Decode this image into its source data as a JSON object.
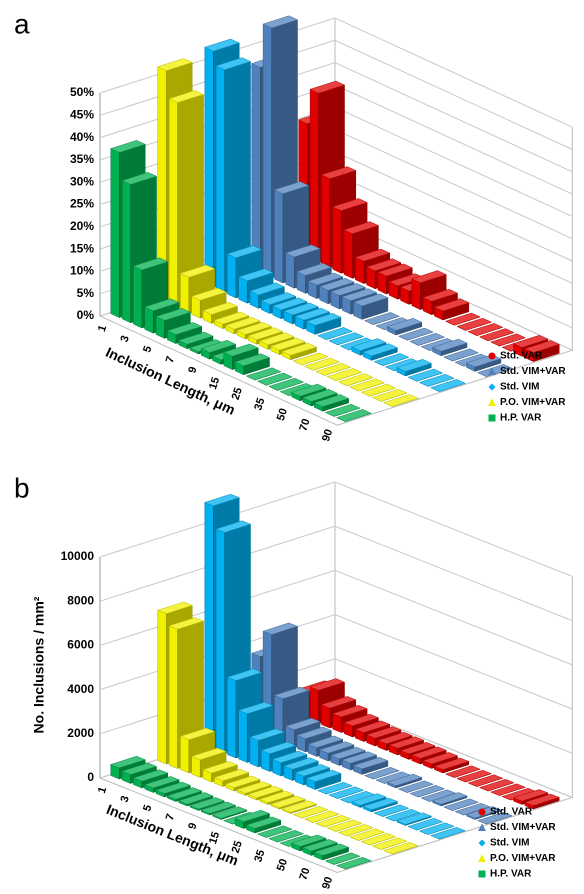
{
  "chart_data": [
    {
      "type": "bar3d",
      "label": "a",
      "categories": [
        "1",
        null,
        "3",
        null,
        "5",
        null,
        "7",
        null,
        "9",
        null,
        "15",
        null,
        "25",
        null,
        "35",
        null,
        "50",
        null,
        "70",
        null,
        "90"
      ],
      "xlabel": "Inclusion Length, μm",
      "ylim": [
        0,
        50
      ],
      "yticks": [
        {
          "value": 0,
          "label": "0%"
        },
        {
          "value": 5,
          "label": "5%"
        },
        {
          "value": 10,
          "label": "10%"
        },
        {
          "value": 15,
          "label": "15%"
        },
        {
          "value": 20,
          "label": "20%"
        },
        {
          "value": 25,
          "label": "25%"
        },
        {
          "value": 30,
          "label": "30%"
        },
        {
          "value": 35,
          "label": "35%"
        },
        {
          "value": 40,
          "label": "40%"
        },
        {
          "value": 45,
          "label": "45%"
        },
        {
          "value": 50,
          "label": "50%"
        }
      ],
      "grid": true,
      "series": [
        {
          "name": "Std. VAR",
          "color": "#e00000",
          "marker": "circle",
          "values": [
            30,
            38,
            20,
            14,
            10,
            5,
            4,
            4,
            3,
            3,
            6,
            3,
            2,
            0,
            0,
            0,
            0,
            0,
            0,
            2,
            2
          ]
        },
        {
          "name": "Std. VIM+VAR",
          "color": "#4f81bd",
          "marker": "triangle",
          "values": [
            46,
            56,
            20,
            7,
            4,
            3,
            3,
            3,
            3,
            3,
            0,
            0,
            1,
            0,
            0,
            0,
            1,
            0,
            0,
            1,
            0
          ]
        },
        {
          "name": "Std. VIM",
          "color": "#00b0f0",
          "marker": "diamond",
          "values": [
            53,
            50,
            9,
            5,
            3,
            2,
            2,
            2,
            2,
            2,
            0,
            0,
            0,
            1,
            1,
            0,
            0,
            1,
            0,
            0,
            0
          ]
        },
        {
          "name": "P.O. VIM+VAR",
          "color": "#f0f000",
          "marker": "triangle",
          "values": [
            52,
            46,
            8,
            4,
            2,
            1,
            1,
            1,
            1,
            1,
            1,
            1,
            0,
            0,
            0,
            0,
            0,
            0,
            0,
            0,
            0
          ]
        },
        {
          "name": "H.P. VAR",
          "color": "#00b050",
          "marker": "square",
          "values": [
            37,
            31,
            13,
            5,
            4,
            2,
            1,
            0.5,
            1.5,
            1,
            3,
            2,
            0,
            0,
            0,
            0,
            1,
            1,
            1,
            0,
            0
          ]
        }
      ]
    },
    {
      "type": "bar3d",
      "label": "b",
      "categories": [
        "1",
        null,
        "3",
        null,
        "5",
        null,
        "7",
        null,
        "9",
        null,
        "15",
        null,
        "25",
        null,
        "35",
        null,
        "50",
        null,
        "70",
        null,
        "90"
      ],
      "xlabel": "Inclusion Length, μm",
      "ylabel": "No. Inclusions / mm²",
      "ylim": [
        0,
        10000
      ],
      "yticks": [
        0,
        2000,
        4000,
        6000,
        8000,
        10000
      ],
      "grid": true,
      "series": [
        {
          "name": "Std. VAR",
          "color": "#e00000",
          "marker": "circle",
          "values": [
            1200,
            1500,
            900,
            700,
            500,
            400,
            350,
            300,
            300,
            250,
            250,
            200,
            150,
            0,
            0,
            0,
            0,
            0,
            0,
            150,
            150
          ]
        },
        {
          "name": "Std. VIM+VAR",
          "color": "#4f81bd",
          "marker": "triangle",
          "values": [
            3500,
            4700,
            2000,
            800,
            600,
            400,
            350,
            300,
            300,
            250,
            0,
            0,
            100,
            0,
            0,
            0,
            80,
            0,
            0,
            60,
            0
          ]
        },
        {
          "name": "Std. VIM",
          "color": "#00b0f0",
          "marker": "diamond",
          "values": [
            11000,
            10000,
            3500,
            2200,
            1200,
            800,
            600,
            500,
            400,
            350,
            0,
            0,
            0,
            100,
            100,
            0,
            0,
            50,
            0,
            0,
            0
          ]
        },
        {
          "name": "P.O. VIM+VAR",
          "color": "#f0f000",
          "marker": "triangle",
          "values": [
            6800,
            6300,
            1500,
            800,
            400,
            250,
            150,
            100,
            100,
            80,
            60,
            50,
            0,
            0,
            0,
            0,
            0,
            0,
            0,
            0,
            0
          ]
        },
        {
          "name": "H.P. VAR",
          "color": "#00b050",
          "marker": "square",
          "values": [
            500,
            400,
            300,
            200,
            150,
            100,
            80,
            60,
            60,
            50,
            0,
            300,
            200,
            0,
            0,
            0,
            200,
            200,
            200,
            0,
            0
          ]
        }
      ]
    }
  ]
}
